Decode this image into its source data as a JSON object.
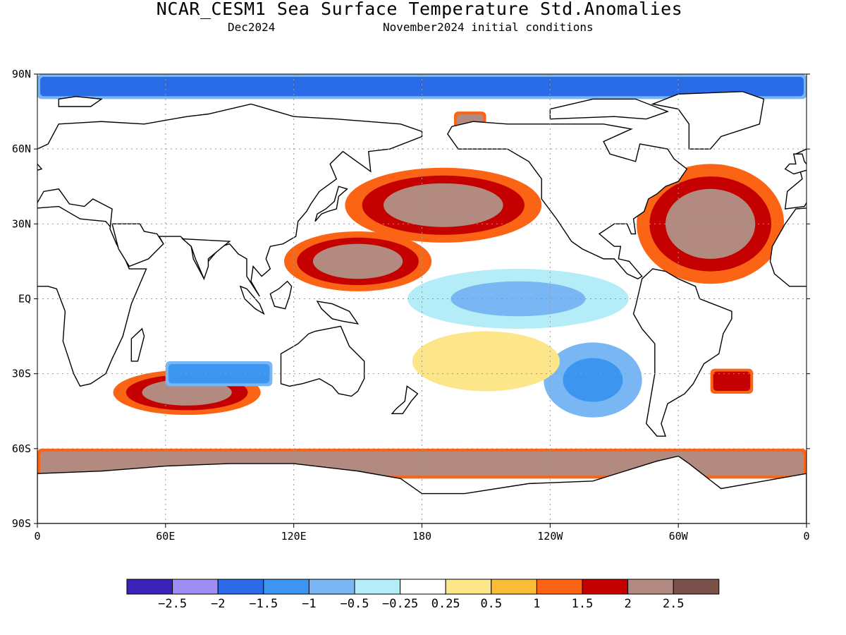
{
  "title": "NCAR_CESM1 Sea Surface Temperature Std.Anomalies",
  "subtitle_left": "Dec2024",
  "subtitle_right": "November2024 initial conditions",
  "axes": {
    "lat_ticks": [
      "90N",
      "60N",
      "30N",
      "EQ",
      "30S",
      "60S",
      "90S"
    ],
    "lon_ticks": [
      "0",
      "60E",
      "120E",
      "180",
      "120W",
      "60W",
      "0"
    ]
  },
  "colorbar": {
    "colors": [
      "#3b22b8",
      "#9f8cf5",
      "#2a6be8",
      "#3c96f0",
      "#78b6f4",
      "#b4edf8",
      "#ffffff",
      "#fde68a",
      "#fbbd35",
      "#fb6414",
      "#c40000",
      "#b38a80",
      "#7a5148"
    ],
    "labels": [
      "−2.5",
      "−2",
      "−1.5",
      "−1",
      "−0.5",
      "−0.25",
      "0.25",
      "0.5",
      "1",
      "1.5",
      "2",
      "2.5"
    ]
  },
  "chart_data": {
    "type": "heatmap",
    "title": "NCAR_CESM1 Sea Surface Temperature Std.Anomalies",
    "subtitle": "Dec2024 / November2024 initial conditions",
    "xlabel": "",
    "ylabel": "",
    "xlim": [
      0,
      360
    ],
    "ylim": [
      -90,
      90
    ],
    "grid": true,
    "legend": "colorbar-bottom",
    "levels": [
      -2.5,
      -2,
      -1.5,
      -1,
      -0.5,
      -0.25,
      0.25,
      0.5,
      1,
      1.5,
      2,
      2.5
    ],
    "regions": [
      {
        "lon": [
          150,
          230
        ],
        "lat": [
          25,
          50
        ],
        "value": 2.5
      },
      {
        "lon": [
          120,
          180
        ],
        "lat": [
          5,
          25
        ],
        "value": 2.5
      },
      {
        "lon": [
          180,
          270
        ],
        "lat": [
          -10,
          10
        ],
        "value": -0.5
      },
      {
        "lon": [
          285,
          345
        ],
        "lat": [
          10,
          50
        ],
        "value": 2.5
      },
      {
        "lon": [
          40,
          100
        ],
        "lat": [
          -45,
          -30
        ],
        "value": 2.5
      },
      {
        "lon": [
          0,
          360
        ],
        "lat": [
          -72,
          -60
        ],
        "value": 2.5
      },
      {
        "lon": [
          60,
          110
        ],
        "lat": [
          -35,
          -25
        ],
        "value": -1
      },
      {
        "lon": [
          240,
          280
        ],
        "lat": [
          -45,
          -20
        ],
        "value": -1
      },
      {
        "lon": [
          180,
          240
        ],
        "lat": [
          -35,
          -15
        ],
        "value": 0.5
      },
      {
        "lon": [
          195,
          210
        ],
        "lat": [
          68,
          75
        ],
        "value": 2.5
      },
      {
        "lon": [
          0,
          360
        ],
        "lat": [
          80,
          90
        ],
        "value": -1.5
      },
      {
        "lon": [
          315,
          335
        ],
        "lat": [
          -38,
          -28
        ],
        "value": 2
      }
    ]
  }
}
